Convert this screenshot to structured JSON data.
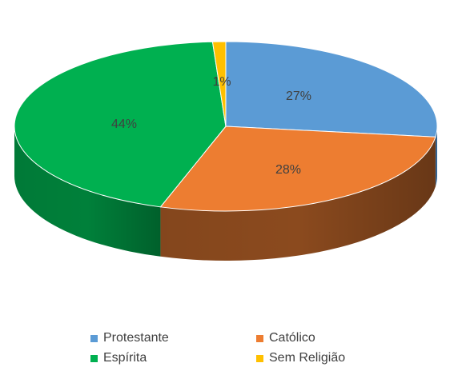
{
  "chart_data": {
    "type": "pie",
    "title": "",
    "categories": [
      "Protestante",
      "Católico",
      "Espírita",
      "Sem Religião"
    ],
    "values": [
      27,
      28,
      44,
      1
    ],
    "labels": [
      "27%",
      "28%",
      "44%",
      "1%"
    ],
    "colors": [
      "#5B9BD5",
      "#ED7D31",
      "#00B050",
      "#FFC000"
    ],
    "side_colors": [
      "#3A6FA0",
      "#8B4A1E",
      "#00803A",
      "#B88A00"
    ],
    "legend_position": "bottom",
    "style": "3d-pie"
  }
}
